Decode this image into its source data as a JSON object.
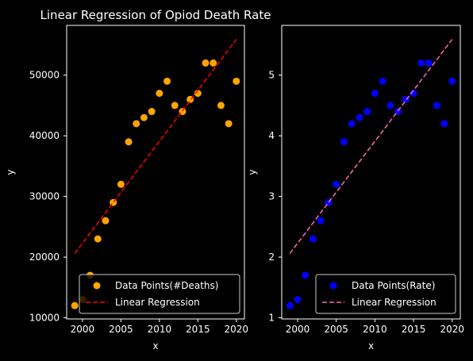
{
  "chart_data": [
    {
      "type": "scatter",
      "title": "Linear Regression of Opiod Death Rate",
      "xlabel": "x",
      "ylabel": "y",
      "xlim": [
        1997.95,
        2021.05
      ],
      "ylim": [
        9800,
        58200
      ],
      "xticks": [
        2000,
        2005,
        2010,
        2015,
        2020
      ],
      "yticks": [
        10000,
        20000,
        30000,
        40000,
        50000
      ],
      "legend_position": "lower right",
      "series": [
        {
          "name": "Data Points(#Deaths)",
          "kind": "scatter",
          "color": "#ffa500",
          "x": [
            1999,
            2000,
            2001,
            2002,
            2003,
            2004,
            2005,
            2006,
            2007,
            2008,
            2009,
            2010,
            2011,
            2012,
            2013,
            2014,
            2015,
            2016,
            2017,
            2018,
            2019,
            2020
          ],
          "y": [
            12000,
            13000,
            17000,
            23000,
            26000,
            29000,
            32000,
            39000,
            42000,
            43000,
            44000,
            47000,
            49000,
            45000,
            44000,
            46000,
            47000,
            52000,
            52000,
            45000,
            42000,
            49000
          ]
        },
        {
          "name": "Linear Regression",
          "kind": "line",
          "style": "dashed",
          "color": "#ff0000",
          "x": [
            1999,
            2020
          ],
          "y": [
            20600,
            55900
          ]
        }
      ]
    },
    {
      "type": "scatter",
      "title": "",
      "xlabel": "x",
      "ylabel": "y",
      "xlim": [
        1997.95,
        2021.05
      ],
      "ylim": [
        0.98,
        5.82
      ],
      "xticks": [
        2000,
        2005,
        2010,
        2015,
        2020
      ],
      "yticks": [
        1,
        2,
        3,
        4,
        5
      ],
      "legend_position": "lower right",
      "series": [
        {
          "name": "Data Points(Rate)",
          "kind": "scatter",
          "color": "#0000ff",
          "x": [
            1999,
            2000,
            2001,
            2002,
            2003,
            2004,
            2005,
            2006,
            2007,
            2008,
            2009,
            2010,
            2011,
            2012,
            2013,
            2014,
            2015,
            2016,
            2017,
            2018,
            2019,
            2020
          ],
          "y": [
            1.2,
            1.3,
            1.7,
            2.3,
            2.6,
            2.9,
            3.2,
            3.9,
            4.2,
            4.3,
            4.4,
            4.7,
            4.9,
            4.5,
            4.4,
            4.6,
            4.7,
            5.2,
            5.2,
            4.5,
            4.2,
            4.9
          ]
        },
        {
          "name": "Linear Regression",
          "kind": "line",
          "style": "dashed",
          "color": "#ff69b4",
          "x": [
            1999,
            2020
          ],
          "y": [
            2.06,
            5.59
          ]
        }
      ]
    }
  ]
}
